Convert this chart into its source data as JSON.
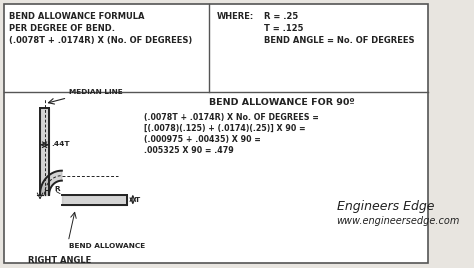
{
  "bg_color": "#e8e5e0",
  "border_color": "#555555",
  "text_color": "#222222",
  "title_top_left_l1": "BEND ALLOWANCE FORMULA",
  "title_top_left_l2": "PER DEGREE OF BEND.",
  "title_top_left_l3": "(.0078T + .0174R) X (No. OF DEGREES)",
  "where_label": "WHERE:",
  "where_r": "R = .25",
  "where_t": "T = .125",
  "where_angle": "BEND ANGLE = No. OF DEGREES",
  "section2_title": "BEND ALLOWANCE FOR 90º",
  "calc_l1": "(.0078T + .0174R) X No. OF DEGREES =",
  "calc_l2": "[(.0078)(.125) + (.0174)(.25)] X 90 =",
  "calc_l3": "(.000975 + .00435) X 90 =",
  "calc_l4": ".005325 X 90 = .479",
  "label_median": "MEDIAN LINE",
  "label_44t": ".44T",
  "label_r": "R",
  "label_t": "T",
  "label_bend_allowance": "BEND ALLOWANCE",
  "label_right_angle": "RIGHT ANGLE",
  "brand_name": "Engineers Edge",
  "brand_url": "www.engineersedge.com",
  "fig_w": 4.74,
  "fig_h": 2.68,
  "dpi": 100
}
